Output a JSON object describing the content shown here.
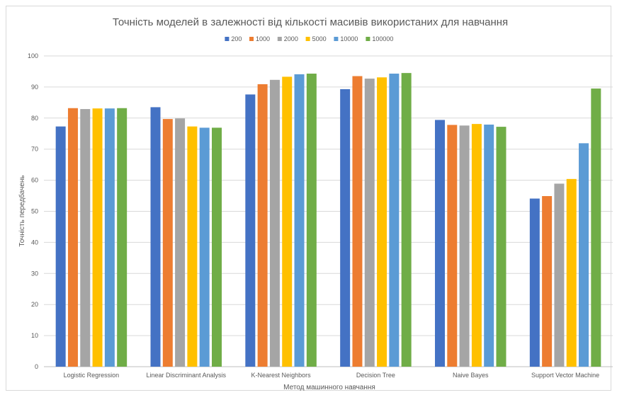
{
  "chart_data": {
    "type": "bar",
    "title": "Точність моделей в залежності від кількості масивів використаних для навчання",
    "xlabel": "Метод машинного навчання",
    "ylabel": "Точність передбачень",
    "ylim": [
      0,
      100
    ],
    "yticks": [
      0,
      10,
      20,
      30,
      40,
      50,
      60,
      70,
      80,
      90,
      100
    ],
    "grid": true,
    "legend_position": "top",
    "categories": [
      "Logistic Regression",
      "Linear Discriminant Analysis",
      "K-Nearest Neighbors",
      "Decision Tree",
      "Naive Bayes",
      "Support Vector Machine"
    ],
    "series": [
      {
        "name": "200",
        "color": "#4472c4",
        "values": [
          77.3,
          83.5,
          87.6,
          89.3,
          79.4,
          54.1
        ]
      },
      {
        "name": "1000",
        "color": "#ed7d31",
        "values": [
          83.2,
          79.7,
          90.9,
          93.5,
          77.8,
          54.9
        ]
      },
      {
        "name": "2000",
        "color": "#a5a5a5",
        "values": [
          82.9,
          79.9,
          92.3,
          92.7,
          77.6,
          58.9
        ]
      },
      {
        "name": "5000",
        "color": "#ffc000",
        "values": [
          83.1,
          77.3,
          93.3,
          93.1,
          78.1,
          60.4
        ]
      },
      {
        "name": "10000",
        "color": "#5b9bd5",
        "values": [
          83.1,
          76.9,
          94.1,
          94.3,
          77.9,
          71.9
        ]
      },
      {
        "name": "100000",
        "color": "#70ad47",
        "values": [
          83.2,
          76.9,
          94.3,
          94.5,
          77.2,
          89.5
        ]
      }
    ]
  }
}
